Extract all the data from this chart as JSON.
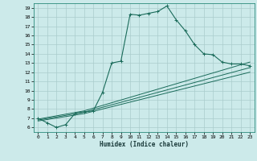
{
  "title": "",
  "xlabel": "Humidex (Indice chaleur)",
  "bg_color": "#cceaea",
  "grid_color": "#aacccc",
  "line_color": "#1a6b5a",
  "xlim": [
    -0.5,
    23.5
  ],
  "ylim": [
    5.5,
    19.5
  ],
  "xticks": [
    0,
    1,
    2,
    3,
    4,
    5,
    6,
    7,
    8,
    9,
    10,
    11,
    12,
    13,
    14,
    15,
    16,
    17,
    18,
    19,
    20,
    21,
    22,
    23
  ],
  "yticks": [
    6,
    7,
    8,
    9,
    10,
    11,
    12,
    13,
    14,
    15,
    16,
    17,
    18,
    19
  ],
  "main_curve_x": [
    0,
    1,
    2,
    3,
    4,
    5,
    6,
    7,
    8,
    9,
    10,
    11,
    12,
    13,
    14,
    15,
    16,
    17,
    18,
    19,
    20,
    21,
    22,
    23
  ],
  "main_curve_y": [
    7.0,
    6.5,
    6.0,
    6.3,
    7.5,
    7.7,
    7.8,
    9.8,
    13.0,
    13.2,
    18.3,
    18.2,
    18.4,
    18.6,
    19.2,
    17.7,
    16.5,
    15.0,
    14.0,
    13.9,
    13.1,
    12.9,
    12.9,
    12.7
  ],
  "line2_x": [
    0,
    5,
    23
  ],
  "line2_y": [
    6.9,
    7.8,
    13.1
  ],
  "line3_x": [
    0,
    5,
    23
  ],
  "line3_y": [
    6.8,
    7.65,
    12.5
  ],
  "line4_x": [
    0,
    5,
    23
  ],
  "line4_y": [
    6.7,
    7.5,
    12.0
  ]
}
